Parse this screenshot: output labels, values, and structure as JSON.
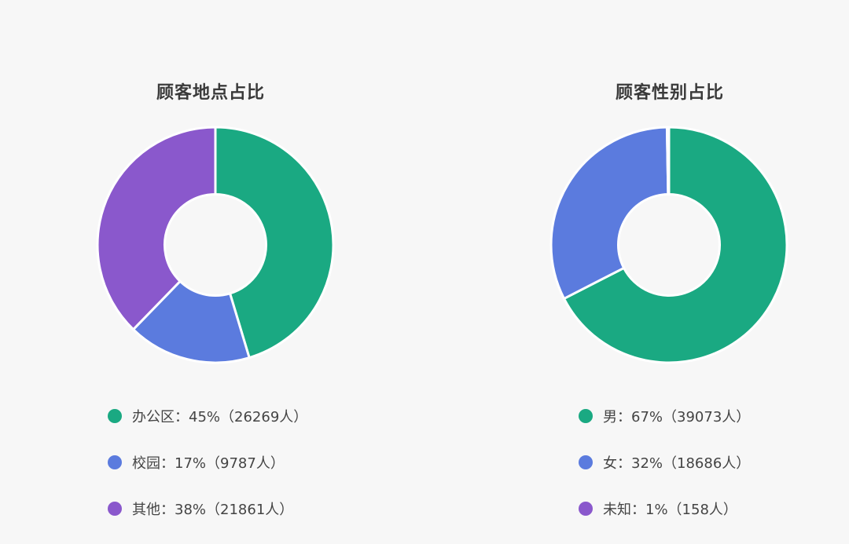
{
  "chart_data": [
    {
      "type": "pie",
      "title": "顾客地点占比",
      "categories": [
        "办公区",
        "校园",
        "其他"
      ],
      "values": [
        26269,
        9787,
        21861
      ],
      "percents": [
        45,
        17,
        38
      ],
      "colors": [
        "#1aa982",
        "#5b7bde",
        "#8a58cc"
      ],
      "labels": [
        "办公区：45%（26269人）",
        "校园：17%（9787人）",
        "其他：38%（21861人）"
      ],
      "inner_radius_ratio": 0.43,
      "legend_position": "bottom"
    },
    {
      "type": "pie",
      "title": "顾客性别占比",
      "categories": [
        "男",
        "女",
        "未知"
      ],
      "values": [
        39073,
        18686,
        158
      ],
      "percents": [
        67,
        32,
        1
      ],
      "colors": [
        "#1aa982",
        "#5b7bde",
        "#8a58cc"
      ],
      "labels": [
        "男：67%（39073人）",
        "女：32%（18686人）",
        "未知：1%（158人）"
      ],
      "inner_radius_ratio": 0.43,
      "legend_position": "bottom"
    }
  ]
}
